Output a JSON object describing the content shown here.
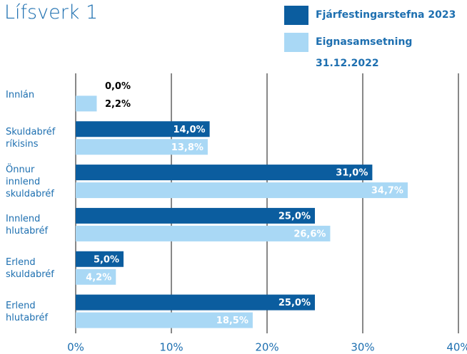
{
  "chart_data": {
    "type": "bar",
    "orientation": "horizontal",
    "title": "Lífsverk 1",
    "categories": [
      "Innlán",
      "Skuldabréf ríkisins",
      "Önnur innlend skuldabréf",
      "Innlend hlutabréf",
      "Erlend skuldabréf",
      "Erlend hlutabréf"
    ],
    "series": [
      {
        "name": "Fjárfestingarstefna 2023",
        "color": "#0b5d9f",
        "values": [
          0,
          14,
          31,
          25,
          5,
          25
        ],
        "value_labels": [
          "0,0%",
          "14,0%",
          "31,0%",
          "25,0%",
          "5,0%",
          "25,0%"
        ]
      },
      {
        "name": "Eignasamsetning 31.12.2022",
        "color": "#a9d8f5",
        "values": [
          2.2,
          13.8,
          34.7,
          26.6,
          4.2,
          18.5
        ],
        "value_labels": [
          "2,2%",
          "13,8%",
          "34,7%",
          "26,6%",
          "4,2%",
          "18,5%"
        ]
      }
    ],
    "xlim": [
      0,
      40
    ],
    "xticks": [
      {
        "value": 0,
        "label": "0%"
      },
      {
        "value": 10,
        "label": "10%"
      },
      {
        "value": 20,
        "label": "20%"
      },
      {
        "value": 30,
        "label": "30%"
      },
      {
        "value": 40,
        "label": "40%"
      }
    ],
    "grid": true,
    "legend": "top-right"
  }
}
